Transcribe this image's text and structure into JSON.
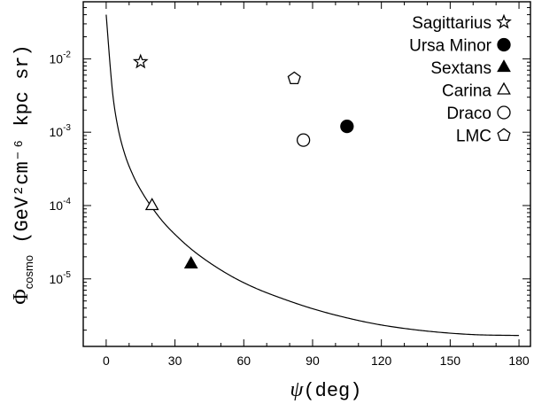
{
  "chart_data": {
    "type": "scatter",
    "xlabel": {
      "symbol": "ψ",
      "rest": "(deg)"
    },
    "ylabel": {
      "symbol": "Φ",
      "sub": "cosmo",
      "rest": " (GeV²cm⁻⁶ kpc sr)"
    },
    "xlim": [
      -10,
      185
    ],
    "ylim": [
      1.2e-06,
      0.06
    ],
    "yscale": "log",
    "xticks": [
      0,
      30,
      60,
      90,
      120,
      150,
      180
    ],
    "yticks": [
      {
        "value": 1e-05,
        "base": "10",
        "exp": "-5"
      },
      {
        "value": 0.0001,
        "base": "10",
        "exp": "-4"
      },
      {
        "value": 0.001,
        "base": "10",
        "exp": "-3"
      },
      {
        "value": 0.01,
        "base": "10",
        "exp": "-2"
      }
    ],
    "grid": false,
    "legend_position": "top-right",
    "series": [
      {
        "name": "Sagittarius",
        "marker": "star-open",
        "x": 15,
        "y": 0.0091
      },
      {
        "name": "Ursa Minor",
        "marker": "circle-filled",
        "x": 105,
        "y": 0.0012
      },
      {
        "name": "Sextans",
        "marker": "triangle-filled",
        "x": 37,
        "y": 1.6e-05
      },
      {
        "name": "Carina",
        "marker": "triangle-open",
        "x": 20,
        "y": 0.0001
      },
      {
        "name": "Draco",
        "marker": "circle-open",
        "x": 86,
        "y": 0.00078
      },
      {
        "name": "LMC",
        "marker": "pentagon-open",
        "x": 82,
        "y": 0.0054
      }
    ],
    "curve": {
      "style": "solid",
      "x": [
        0,
        2,
        3,
        5,
        8,
        12,
        16,
        20,
        25,
        30,
        37,
        45,
        55,
        65,
        75,
        90,
        105,
        120,
        140,
        160,
        180
      ],
      "y": [
        0.04,
        0.0064,
        0.00304,
        0.00121,
        0.000515,
        0.000247,
        0.000145,
        9.38e-05,
        5.89e-05,
        4.04e-05,
        2.56e-05,
        1.67e-05,
        1.07e-05,
        7.5e-06,
        5.65e-06,
        3.92e-06,
        2.94e-06,
        2.35e-06,
        1.94e-06,
        1.74e-06,
        1.69e-06
      ]
    }
  }
}
